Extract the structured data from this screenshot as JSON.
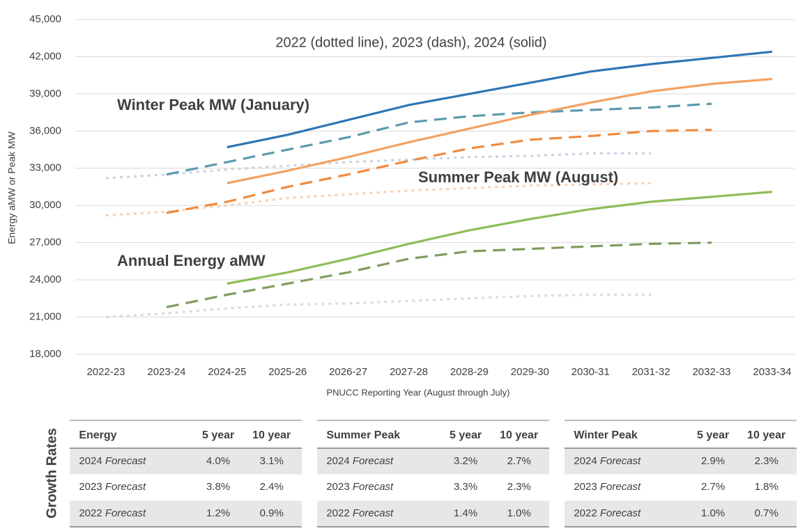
{
  "chart_data": {
    "type": "line",
    "title": "2022 (dotted line), 2023 (dash), 2024 (solid)",
    "x_label": "PNUCC Reporting Year (August through July)",
    "y_label": "Energy aMW or Peak MW",
    "categories": [
      "2022-23",
      "2023-24",
      "2024-25",
      "2025-26",
      "2026-27",
      "2027-28",
      "2028-29",
      "2029-30",
      "2030-31",
      "2031-32",
      "2032-33",
      "2033-34"
    ],
    "ylim": [
      18000,
      45000
    ],
    "yticks": [
      {
        "value": 18000,
        "label": "18,000"
      },
      {
        "value": 21000,
        "label": "21,000"
      },
      {
        "value": 24000,
        "label": "24,000"
      },
      {
        "value": 27000,
        "label": "27,000"
      },
      {
        "value": 30000,
        "label": "30,000"
      },
      {
        "value": 33000,
        "label": "33,000"
      },
      {
        "value": 36000,
        "label": "36,000"
      },
      {
        "value": 39000,
        "label": "39,000"
      },
      {
        "value": 42000,
        "label": "42,000"
      },
      {
        "value": 45000,
        "label": "45,000"
      }
    ],
    "grid": true,
    "annotations": [
      {
        "text": "Winter Peak MW (January)",
        "color": "#2e75b6"
      },
      {
        "text": "Summer Peak MW (August)",
        "color": "#ed7d31"
      },
      {
        "text": "Annual Energy aMW",
        "color": "#70ad47"
      }
    ],
    "series": [
      {
        "style": "dotted",
        "color": "#c9d3e2",
        "values": [
          32200,
          32500,
          32900,
          33200,
          33500,
          33700,
          33900,
          34000,
          34200,
          34200,
          null,
          null
        ]
      },
      {
        "style": "dash",
        "color": "#5b9aad",
        "values": [
          null,
          32500,
          33500,
          34500,
          35500,
          36700,
          37200,
          37500,
          37700,
          37900,
          38200,
          null
        ]
      },
      {
        "style": "solid",
        "color": "#2e75b6",
        "values": [
          null,
          null,
          34700,
          35700,
          36900,
          38100,
          39000,
          39900,
          40800,
          41400,
          41900,
          42400
        ]
      },
      {
        "style": "dotted",
        "color": "#f8d0b4",
        "values": [
          29200,
          29500,
          30000,
          30600,
          30900,
          31200,
          31400,
          31600,
          31700,
          31800,
          null,
          null
        ]
      },
      {
        "style": "dash",
        "color": "#f08a3e",
        "values": [
          null,
          29400,
          30300,
          31500,
          32500,
          33600,
          34600,
          35300,
          35600,
          36000,
          36100,
          null
        ]
      },
      {
        "style": "solid",
        "color": "#f4a160",
        "values": [
          null,
          null,
          31800,
          32800,
          33900,
          35100,
          36200,
          37300,
          38300,
          39200,
          39800,
          40200
        ]
      },
      {
        "style": "dotted",
        "color": "#dcdcd2",
        "values": [
          21000,
          21300,
          21700,
          22000,
          22100,
          22300,
          22500,
          22700,
          22800,
          22800,
          null,
          null
        ]
      },
      {
        "style": "dash",
        "color": "#7f9c5e",
        "values": [
          null,
          21800,
          22800,
          23700,
          24600,
          25700,
          26300,
          26500,
          26700,
          26900,
          27000,
          null
        ]
      },
      {
        "style": "solid",
        "color": "#8fbc5a",
        "values": [
          null,
          null,
          23700,
          24600,
          25700,
          26900,
          28000,
          28900,
          29700,
          30300,
          30700,
          31100
        ]
      }
    ]
  },
  "growth_rates": {
    "title": "Growth Rates",
    "tables": [
      {
        "color": "#70ad47",
        "header": [
          "Energy",
          "5 year",
          "10 year"
        ],
        "rows": [
          [
            [
              "2024",
              "Forecast"
            ],
            "4.0%",
            "3.1%"
          ],
          [
            [
              "2023",
              "Forecast"
            ],
            "3.8%",
            "2.4%"
          ],
          [
            [
              "2022",
              "Forecast"
            ],
            "1.2%",
            "0.9%"
          ]
        ]
      },
      {
        "color": "#ed7d31",
        "header": [
          "Summer Peak",
          "5 year",
          "10 year"
        ],
        "rows": [
          [
            [
              "2024",
              "Forecast"
            ],
            "3.2%",
            "2.7%"
          ],
          [
            [
              "2023",
              "Forecast"
            ],
            "3.3%",
            "2.3%"
          ],
          [
            [
              "2022",
              "Forecast"
            ],
            "1.4%",
            "1.0%"
          ]
        ]
      },
      {
        "color": "#2e75b6",
        "header": [
          "Winter Peak",
          "5 year",
          "10 year"
        ],
        "rows": [
          [
            [
              "2024",
              "Forecast"
            ],
            "2.9%",
            "2.3%"
          ],
          [
            [
              "2023",
              "Forecast"
            ],
            "2.7%",
            "1.8%"
          ],
          [
            [
              "2022",
              "Forecast"
            ],
            "1.0%",
            "0.7%"
          ]
        ]
      }
    ]
  }
}
